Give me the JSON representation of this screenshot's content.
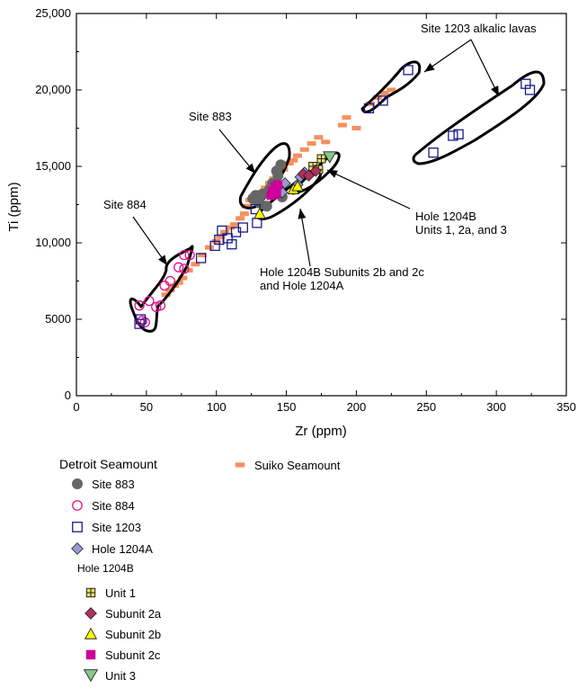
{
  "chart_data": {
    "type": "scatter",
    "xlabel": "Zr (ppm)",
    "ylabel": "Ti (ppm)",
    "xlim": [
      0,
      350
    ],
    "ylim": [
      0,
      25000
    ],
    "xticks": [
      "0",
      "50",
      "100",
      "150",
      "200",
      "250",
      "300",
      "350"
    ],
    "yticks": [
      "0",
      "5000",
      "10,000",
      "15,000",
      "20,000",
      "25,000"
    ],
    "legend": {
      "group1": "Detroit Seamount",
      "group2": "Hole 1204B",
      "placement": "below-plot"
    },
    "annotations": {
      "site_1203": "Site 1203 alkalic lavas",
      "site_883": "Site 883",
      "site_884": "Site 884",
      "hole_1204b_line1": "Hole 1204B",
      "hole_1204b_line2": "Units 1, 2a, and 3",
      "subunits_line1": "Hole 1204B Subunits 2b and 2c",
      "subunits_line2": "and Hole 1204A"
    },
    "series": [
      {
        "name": "Site 883",
        "marker": "filled-circle",
        "color": "#666666",
        "points": [
          [
            143,
            14700
          ],
          [
            146,
            15100
          ],
          [
            144,
            14400
          ],
          [
            140,
            13900
          ],
          [
            138,
            13500
          ],
          [
            133,
            13200
          ],
          [
            128,
            13100
          ],
          [
            126,
            12900
          ],
          [
            131,
            12600
          ],
          [
            136,
            12400
          ],
          [
            141,
            13300
          ],
          [
            147,
            13000
          ]
        ]
      },
      {
        "name": "Site 884",
        "marker": "open-circle",
        "color": "#dd1188",
        "points": [
          [
            45,
            5900
          ],
          [
            47,
            4900
          ],
          [
            49,
            4800
          ],
          [
            52,
            6200
          ],
          [
            57,
            5800
          ],
          [
            60,
            5900
          ],
          [
            63,
            7200
          ],
          [
            67,
            7500
          ],
          [
            73,
            8400
          ],
          [
            77,
            8300
          ],
          [
            77,
            9200
          ],
          [
            81,
            9200
          ]
        ]
      },
      {
        "name": "Site 1203",
        "marker": "open-square",
        "color": "#1a1a88",
        "points": [
          [
            45,
            4700
          ],
          [
            46,
            5000
          ],
          [
            89,
            9000
          ],
          [
            99,
            9800
          ],
          [
            102,
            10200
          ],
          [
            104,
            10800
          ],
          [
            108,
            10300
          ],
          [
            111,
            9900
          ],
          [
            114,
            10700
          ],
          [
            119,
            11000
          ],
          [
            129,
            11300
          ],
          [
            128,
            12200
          ],
          [
            209,
            18800
          ],
          [
            219,
            19300
          ],
          [
            237,
            21300
          ],
          [
            255,
            15900
          ],
          [
            269,
            17000
          ],
          [
            273,
            17100
          ],
          [
            321,
            20400
          ],
          [
            324,
            20000
          ]
        ]
      },
      {
        "name": "Hole 1204A",
        "marker": "diamond",
        "color": "#9a9ad0",
        "points": [
          [
            160,
            14300
          ],
          [
            163,
            14600
          ],
          [
            158,
            13800
          ],
          [
            149,
            13900
          ],
          [
            147,
            13300
          ]
        ]
      },
      {
        "name": "Unit 1",
        "marker": "crossed-square",
        "color": "#e8e060",
        "points": [
          [
            169,
            15000
          ],
          [
            173,
            14800
          ],
          [
            175,
            15500
          ]
        ]
      },
      {
        "name": "Subunit 2a",
        "marker": "diamond",
        "color": "#b03060",
        "points": [
          [
            162,
            14500
          ],
          [
            166,
            14400
          ],
          [
            171,
            14700
          ]
        ]
      },
      {
        "name": "Subunit 2b",
        "marker": "triangle-up",
        "color": "#ffff00",
        "points": [
          [
            131,
            11900
          ],
          [
            155,
            13500
          ],
          [
            158,
            13700
          ]
        ]
      },
      {
        "name": "Subunit 2c",
        "marker": "filled-square",
        "color": "#cc0099",
        "points": [
          [
            140,
            13400
          ],
          [
            142,
            13700
          ],
          [
            143,
            13200
          ],
          [
            144,
            13800
          ],
          [
            139,
            13100
          ]
        ]
      },
      {
        "name": "Unit 3",
        "marker": "triangle-down",
        "color": "#88c888",
        "points": [
          [
            181,
            15600
          ]
        ]
      },
      {
        "name": "Suiko Seamount",
        "marker": "dash",
        "color": "#f5915e",
        "points": [
          [
            64,
            6600
          ],
          [
            67,
            6900
          ],
          [
            70,
            7200
          ],
          [
            73,
            7400
          ],
          [
            76,
            7700
          ],
          [
            80,
            8200
          ],
          [
            85,
            8600
          ],
          [
            90,
            9200
          ],
          [
            95,
            9700
          ],
          [
            100,
            10100
          ],
          [
            103,
            10400
          ],
          [
            106,
            10700
          ],
          [
            110,
            11000
          ],
          [
            113,
            11200
          ],
          [
            117,
            11600
          ],
          [
            120,
            11900
          ],
          [
            121,
            12400
          ],
          [
            124,
            12800
          ],
          [
            127,
            12600
          ],
          [
            129,
            13000
          ],
          [
            132,
            13300
          ],
          [
            135,
            13600
          ],
          [
            138,
            13900
          ],
          [
            141,
            14200
          ],
          [
            144,
            14500
          ],
          [
            148,
            14800
          ],
          [
            152,
            15200
          ],
          [
            155,
            15400
          ],
          [
            158,
            15700
          ],
          [
            163,
            16100
          ],
          [
            168,
            16500
          ],
          [
            173,
            16900
          ],
          [
            178,
            16600
          ],
          [
            200,
            17500
          ],
          [
            210,
            19100
          ],
          [
            215,
            19500
          ],
          [
            220,
            19800
          ],
          [
            225,
            20000
          ],
          [
            193,
            18200
          ],
          [
            190,
            17700
          ]
        ]
      }
    ],
    "envelopes": [
      "Site 884",
      "Site 883",
      "Hole 1204B Units 1, 2a, and 3",
      "Hole 1204B Subunits 2b and 2c and Hole 1204A",
      "Site 1203 alkalic lavas"
    ]
  }
}
